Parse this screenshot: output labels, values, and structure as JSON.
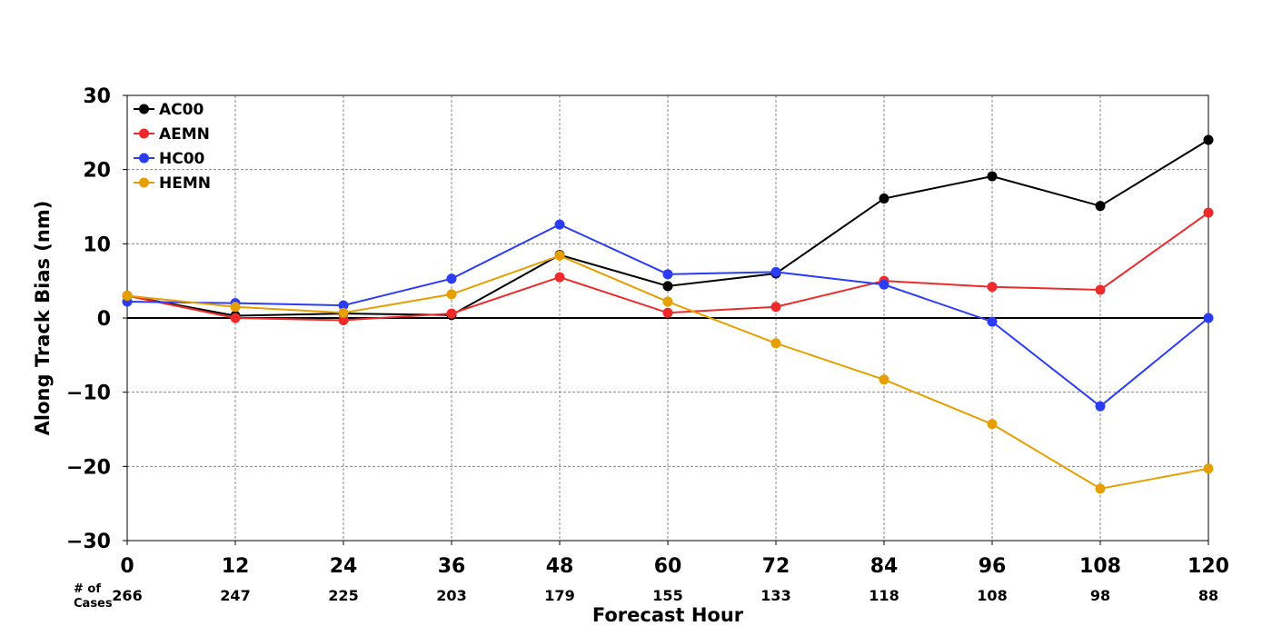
{
  "chart_data": {
    "type": "line",
    "xlabel": "Forecast Hour",
    "ylabel": "Along Track Bias (nm)",
    "xlim": [
      0,
      120
    ],
    "ylim": [
      -30,
      30
    ],
    "x": [
      0,
      12,
      24,
      36,
      48,
      60,
      72,
      84,
      96,
      108,
      120
    ],
    "x_ticks": [
      "0",
      "12",
      "24",
      "36",
      "48",
      "60",
      "72",
      "84",
      "96",
      "108",
      "120"
    ],
    "y_ticks": [
      30,
      20,
      10,
      0,
      -10,
      -20,
      -30
    ],
    "y_tick_labels": [
      "30",
      "20",
      "10",
      "0",
      "−10",
      "−20",
      "−30"
    ],
    "cases_label_line1": "# of",
    "cases_label_line2": "Cases",
    "cases": [
      "266",
      "247",
      "225",
      "203",
      "179",
      "155",
      "133",
      "118",
      "108",
      "98",
      "88"
    ],
    "grid": true,
    "legend_position": "top-left",
    "series": [
      {
        "name": "AC00",
        "color": "#000000",
        "values": [
          3.0,
          0.3,
          0.6,
          0.4,
          8.5,
          4.3,
          6.0,
          16.1,
          19.1,
          15.1,
          24.0
        ]
      },
      {
        "name": "AEMN",
        "color": "#ee2a2a",
        "values": [
          3.0,
          0.0,
          -0.3,
          0.6,
          5.5,
          0.7,
          1.5,
          5.0,
          4.2,
          3.8,
          14.2
        ]
      },
      {
        "name": "HC00",
        "color": "#2a3cf5",
        "values": [
          2.2,
          2.0,
          1.7,
          5.3,
          12.6,
          5.9,
          6.2,
          4.5,
          -0.5,
          -11.9,
          0.0
        ]
      },
      {
        "name": "HEMN",
        "color": "#e69f00",
        "values": [
          3.0,
          1.5,
          0.7,
          3.2,
          8.4,
          2.2,
          -3.4,
          -8.3,
          -14.3,
          -23.0,
          -20.3
        ]
      }
    ]
  }
}
